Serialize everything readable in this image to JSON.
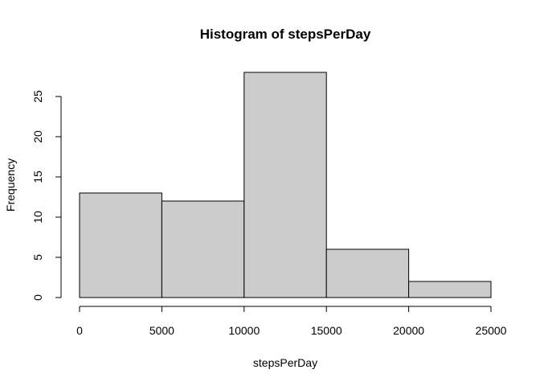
{
  "chart_data": {
    "type": "bar",
    "subtype": "histogram",
    "title": "Histogram of stepsPerDay",
    "xlabel": "stepsPerDay",
    "ylabel": "Frequency",
    "bins": [
      {
        "start": 0,
        "end": 5000,
        "count": 13
      },
      {
        "start": 5000,
        "end": 10000,
        "count": 12
      },
      {
        "start": 10000,
        "end": 15000,
        "count": 28
      },
      {
        "start": 15000,
        "end": 20000,
        "count": 6
      },
      {
        "start": 20000,
        "end": 25000,
        "count": 2
      }
    ],
    "xlim": [
      0,
      25000
    ],
    "ylim": [
      0,
      28
    ],
    "xticks": [
      0,
      5000,
      10000,
      15000,
      20000,
      25000
    ],
    "yticks": [
      0,
      5,
      10,
      15,
      20,
      25
    ],
    "bar_color": "#cccccc",
    "edge_color": "#000000",
    "grid": false
  }
}
